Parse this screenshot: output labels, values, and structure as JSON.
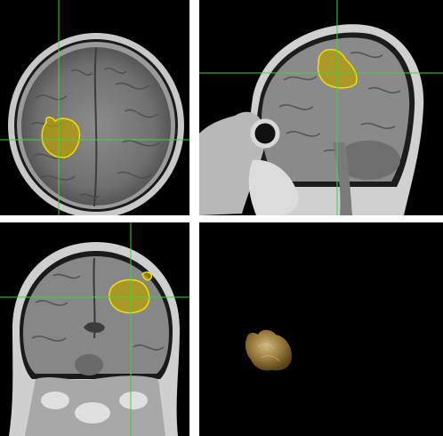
{
  "viewer": {
    "views": [
      "axial",
      "sagittal",
      "coronal",
      "3d-render"
    ],
    "colors": {
      "crosshair": "#38d838",
      "segmentation_fill": "#b8a000",
      "segmentation_outline": "#f0e000",
      "render_surface": "#9a7a3c",
      "background": "#000000",
      "divider": "#ffffff"
    },
    "icons": {
      "tumor_mask": "segmentation-overlay",
      "crosshair": "crosshair-lines"
    }
  }
}
